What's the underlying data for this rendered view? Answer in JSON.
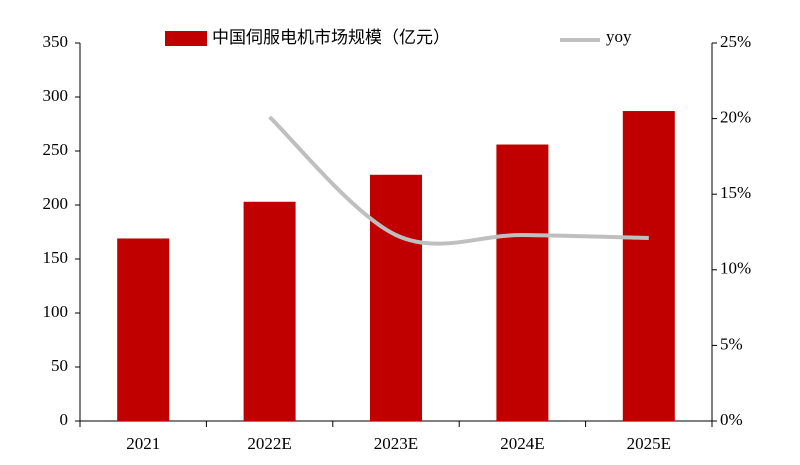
{
  "chart_data": {
    "type": "bar",
    "categories": [
      "2021",
      "2022E",
      "2023E",
      "2024E",
      "2025E"
    ],
    "series": [
      {
        "name": "中国伺服电机市场规模（亿元）",
        "type": "bar",
        "color": "#c00000",
        "values": [
          169,
          203,
          228,
          256,
          287
        ]
      },
      {
        "name": "yoy",
        "type": "line",
        "color": "#bfbfbf",
        "axis": "y2",
        "values": [
          null,
          20.1,
          12.3,
          12.3,
          12.1
        ]
      }
    ],
    "ylim": [
      0,
      350
    ],
    "yticks": [
      0,
      50,
      100,
      150,
      200,
      250,
      300,
      350
    ],
    "y2lim": [
      0,
      25
    ],
    "y2ticks": [
      {
        "value": 0,
        "label": "0%"
      },
      {
        "value": 5,
        "label": "5%"
      },
      {
        "value": 10,
        "label": "10%"
      },
      {
        "value": 15,
        "label": "15%"
      },
      {
        "value": 20,
        "label": "20%"
      },
      {
        "value": 25,
        "label": "25%"
      }
    ]
  }
}
